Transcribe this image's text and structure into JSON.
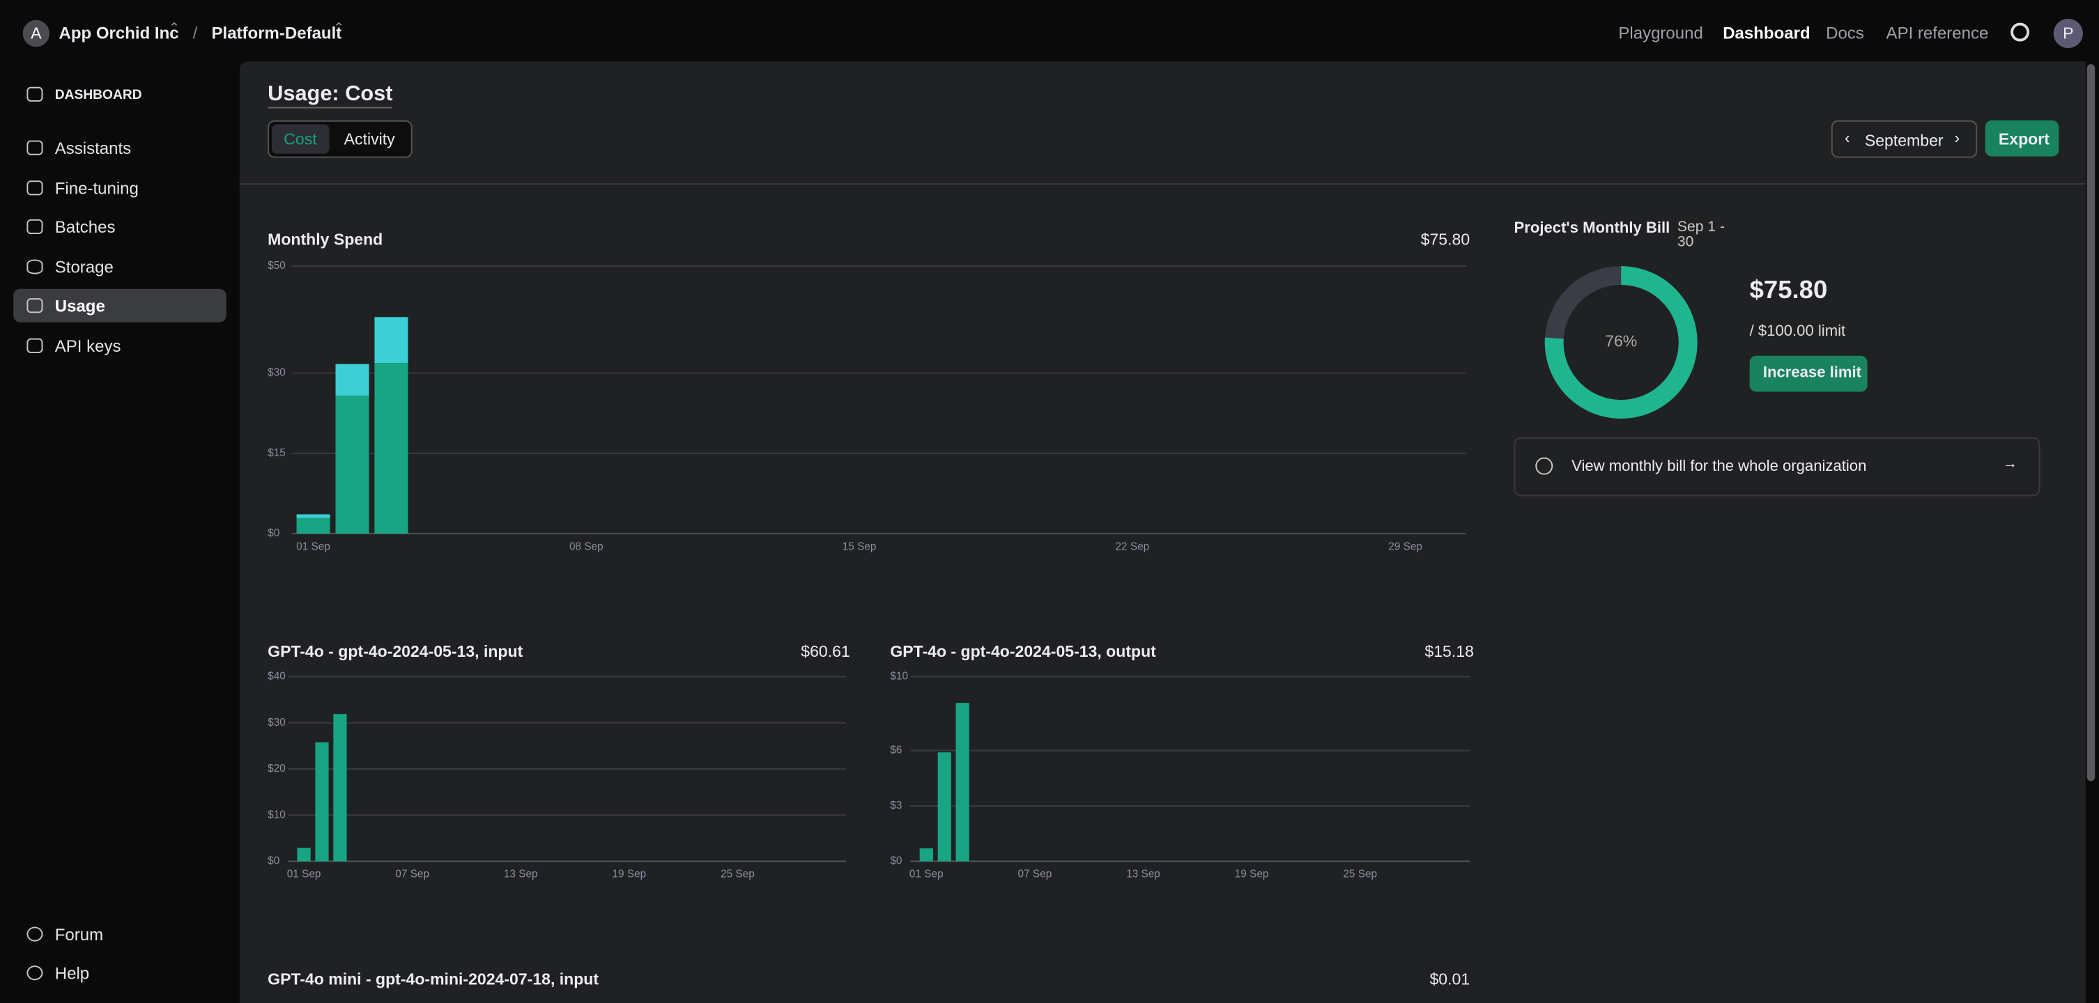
{
  "topbar": {
    "org_initial": "A",
    "org": "App Orchid Inc",
    "separator": "/",
    "project": "Platform-Default",
    "nav": [
      "Playground",
      "Dashboard",
      "Docs",
      "API reference"
    ],
    "user_initial": "P"
  },
  "sidebar": {
    "section": "DASHBOARD",
    "items": [
      "Assistants",
      "Fine-tuning",
      "Batches",
      "Storage",
      "Usage",
      "API keys"
    ],
    "footer": [
      "Forum",
      "Help"
    ]
  },
  "header": {
    "title": "Usage: Cost",
    "tabs": [
      "Cost",
      "Activity"
    ],
    "month": "September",
    "export": "Export"
  },
  "monthly_spend": {
    "type": "bar",
    "stacked": true,
    "title": "Monthly Spend",
    "total": "$75.80",
    "x": [
      1,
      2,
      3
    ],
    "series": [
      {
        "color": "#17a583",
        "values": [
          2.9,
          25.8,
          31.9
        ]
      },
      {
        "color": "#3ccfd6",
        "values": [
          0.7,
          5.9,
          8.58
        ]
      }
    ],
    "xlim": [
      0.45,
      30.55
    ],
    "xticks": [
      {
        "value": 1,
        "label": "01 Sep"
      },
      {
        "value": 8,
        "label": "08 Sep"
      },
      {
        "value": 15,
        "label": "15 Sep"
      },
      {
        "value": 22,
        "label": "22 Sep"
      },
      {
        "value": 29,
        "label": "29 Sep"
      }
    ],
    "ylim": [
      0,
      50
    ],
    "yticks": [
      {
        "value": 0,
        "label": "$0"
      },
      {
        "value": 15,
        "label": "$15"
      },
      {
        "value": 30,
        "label": "$30"
      },
      {
        "value": 50,
        "label": "$50"
      }
    ],
    "grid": true
  },
  "model_charts": [
    {
      "type": "bar",
      "title": "GPT-4o - gpt-4o-2024-05-13, input",
      "total": "$60.61",
      "x": [
        1,
        2,
        3
      ],
      "color": "#17a583",
      "values": [
        2.9,
        25.8,
        31.9
      ],
      "xlim": [
        0.11,
        31
      ],
      "xticks": [
        {
          "value": 1,
          "label": "01 Sep"
        },
        {
          "value": 7,
          "label": "07 Sep"
        },
        {
          "value": 13,
          "label": "13 Sep"
        },
        {
          "value": 19,
          "label": "19 Sep"
        },
        {
          "value": 25,
          "label": "25 Sep"
        }
      ],
      "ylim": [
        0,
        40
      ],
      "yticks": [
        {
          "value": 0,
          "label": "$0"
        },
        {
          "value": 10,
          "label": "$10"
        },
        {
          "value": 20,
          "label": "$20"
        },
        {
          "value": 30,
          "label": "$30"
        },
        {
          "value": 40,
          "label": "$40"
        }
      ],
      "grid": true
    },
    {
      "type": "bar",
      "title": "GPT-4o - gpt-4o-2024-05-13, output",
      "total": "$15.18",
      "x": [
        1,
        2,
        3
      ],
      "color": "#17a583",
      "values": [
        0.7,
        5.9,
        8.58
      ],
      "xlim": [
        0.11,
        31.07
      ],
      "xticks": [
        {
          "value": 1,
          "label": "01 Sep"
        },
        {
          "value": 7,
          "label": "07 Sep"
        },
        {
          "value": 13,
          "label": "13 Sep"
        },
        {
          "value": 19,
          "label": "19 Sep"
        },
        {
          "value": 25,
          "label": "25 Sep"
        }
      ],
      "ylim": [
        0,
        10
      ],
      "yticks": [
        {
          "value": 0,
          "label": "$0"
        },
        {
          "value": 3,
          "label": "$3"
        },
        {
          "value": 6,
          "label": "$6"
        },
        {
          "value": 10,
          "label": "$10"
        }
      ],
      "grid": true
    },
    {
      "title": "GPT-4o mini - gpt-4o-mini-2024-07-18, input",
      "total": "$0.01"
    }
  ],
  "bill": {
    "title": "Project's Monthly Bill",
    "period": "Sep 1 - 30",
    "gauge": {
      "type": "donut",
      "values": [
        76
      ],
      "value_labels": [
        "76%"
      ],
      "color": "#1fb58f",
      "track_color": "#3a3d45"
    },
    "amount": "$75.80",
    "limit": "/ $100.00 limit",
    "action": "Increase limit",
    "org_link": "View monthly bill for the whole organization"
  }
}
